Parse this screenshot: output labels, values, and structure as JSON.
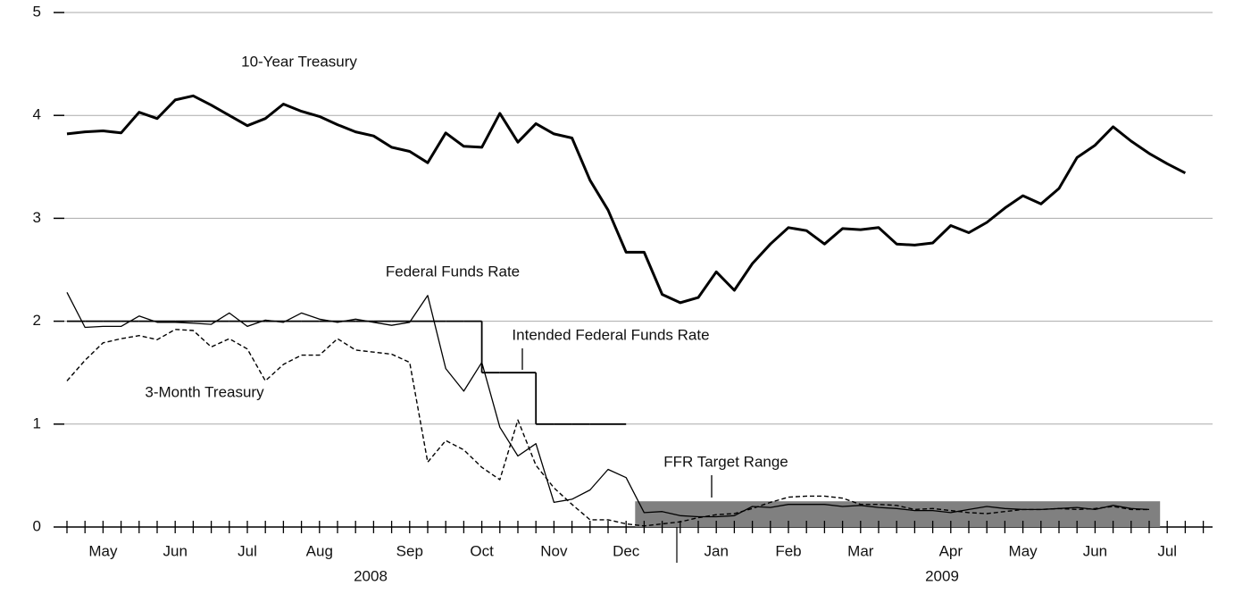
{
  "chart_data": {
    "type": "line",
    "categories": [
      null,
      null,
      "May",
      null,
      null,
      null,
      "Jun",
      null,
      null,
      null,
      "Jul",
      null,
      null,
      null,
      "Aug",
      null,
      null,
      null,
      null,
      "Sep",
      null,
      null,
      null,
      "Oct",
      null,
      null,
      null,
      "Nov",
      null,
      null,
      null,
      "Dec",
      null,
      null,
      null,
      null,
      "Jan",
      null,
      null,
      null,
      "Feb",
      null,
      null,
      null,
      "Mar",
      null,
      null,
      null,
      null,
      "Apr",
      null,
      null,
      null,
      "May",
      null,
      null,
      null,
      "Jun",
      null,
      null,
      null,
      "Jul",
      null,
      null
    ],
    "year_labels": [
      "2008",
      "2009"
    ],
    "ylim": [
      0,
      5
    ],
    "yticks": [
      0,
      1,
      2,
      3,
      4,
      5
    ],
    "grid": true,
    "series": [
      {
        "name": "10-Year Treasury",
        "color": "#000000",
        "width": 3,
        "values": [
          3.82,
          3.84,
          3.85,
          3.83,
          4.03,
          3.97,
          4.15,
          4.19,
          4.1,
          4.0,
          3.9,
          3.97,
          4.11,
          4.04,
          3.99,
          3.91,
          3.84,
          3.8,
          3.69,
          3.65,
          3.54,
          3.83,
          3.7,
          3.69,
          4.02,
          3.74,
          3.92,
          3.82,
          3.78,
          3.37,
          3.08,
          2.67,
          2.67,
          2.26,
          2.18,
          2.23,
          2.48,
          2.3,
          2.56,
          2.75,
          2.91,
          2.88,
          2.75,
          2.9,
          2.89,
          2.91,
          2.75,
          2.74,
          2.76,
          2.93,
          2.86,
          2.96,
          3.1,
          3.22,
          3.14,
          3.29,
          3.59,
          3.71,
          3.89,
          3.75,
          3.63,
          3.53,
          3.44,
          null
        ]
      },
      {
        "name": "Federal Funds Rate",
        "color": "#000000",
        "width": 1.3,
        "values": [
          2.28,
          1.94,
          1.95,
          1.95,
          2.05,
          1.99,
          1.99,
          1.98,
          1.97,
          2.08,
          1.95,
          2.01,
          1.99,
          2.08,
          2.02,
          1.99,
          2.02,
          1.99,
          1.96,
          1.99,
          2.25,
          1.54,
          1.32,
          1.6,
          0.97,
          0.69,
          0.81,
          0.24,
          0.27,
          0.36,
          0.56,
          0.48,
          0.14,
          0.15,
          0.11,
          0.1,
          0.1,
          0.11,
          0.2,
          0.19,
          0.22,
          0.22,
          0.22,
          0.2,
          0.21,
          0.19,
          0.18,
          0.16,
          0.16,
          0.14,
          0.17,
          0.2,
          0.18,
          0.17,
          0.17,
          0.18,
          0.19,
          0.17,
          0.21,
          0.18,
          0.17,
          null,
          null,
          null
        ]
      },
      {
        "name": "3-Month Treasury",
        "color": "#000000",
        "width": 1.4,
        "dashed": true,
        "values": [
          1.42,
          1.62,
          1.79,
          1.83,
          1.86,
          1.82,
          1.92,
          1.91,
          1.75,
          1.83,
          1.73,
          1.42,
          1.58,
          1.67,
          1.67,
          1.83,
          1.72,
          1.7,
          1.68,
          1.6,
          0.63,
          0.84,
          0.75,
          0.58,
          0.46,
          1.04,
          0.6,
          0.38,
          0.22,
          0.07,
          0.07,
          0.03,
          0.01,
          0.03,
          0.05,
          0.09,
          0.12,
          0.13,
          0.18,
          0.24,
          0.29,
          0.3,
          0.3,
          0.28,
          0.22,
          0.22,
          0.21,
          0.17,
          0.18,
          0.16,
          0.14,
          0.13,
          0.15,
          0.17,
          0.17,
          0.18,
          0.17,
          0.18,
          0.2,
          0.17,
          0.17,
          null,
          null,
          null
        ]
      },
      {
        "name": "Intended Federal Funds Rate",
        "color": "#000000",
        "width": 1.8,
        "step": true,
        "values": [
          2,
          2,
          2,
          2,
          2,
          2,
          2,
          2,
          2,
          2,
          2,
          2,
          2,
          2,
          2,
          2,
          2,
          2,
          2,
          2,
          2,
          2,
          2,
          1.5,
          1.5,
          1.5,
          1,
          1,
          1,
          1,
          1,
          1,
          null,
          null,
          null,
          null,
          null,
          null,
          null,
          null,
          null,
          null,
          null,
          null,
          null,
          null,
          null,
          null,
          null,
          null,
          null,
          null,
          null,
          null,
          null,
          null,
          null,
          null,
          null,
          null,
          null,
          null,
          null,
          null
        ]
      }
    ],
    "target_range": {
      "name": "FFR Target Range",
      "color": "#808080",
      "values": [
        0,
        0.25
      ]
    }
  }
}
